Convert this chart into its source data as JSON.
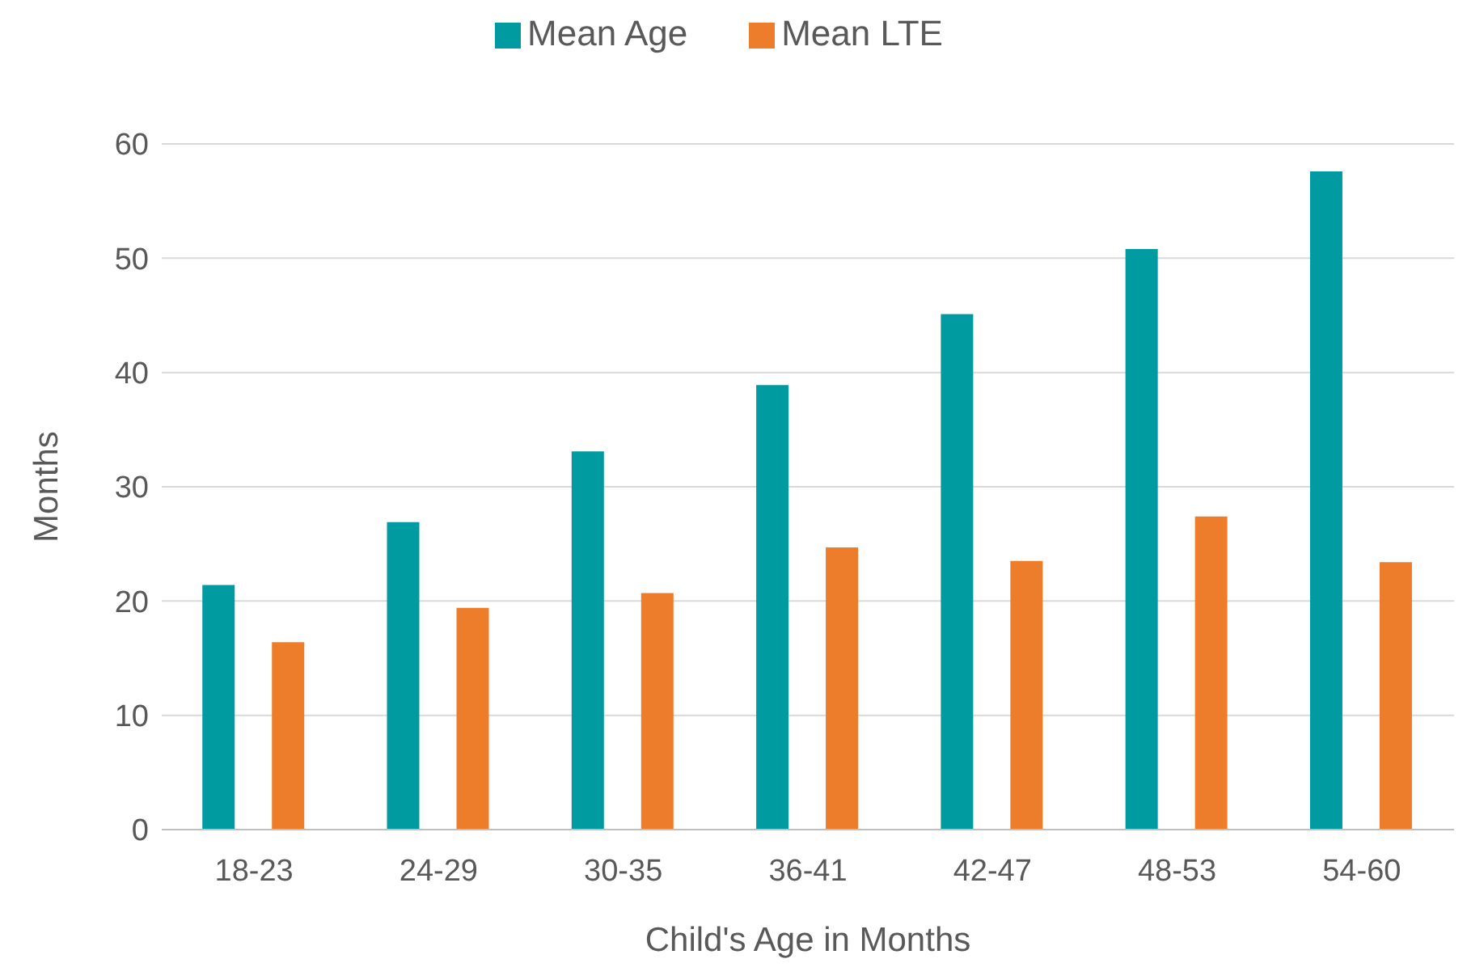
{
  "chart_data": {
    "type": "bar",
    "xlabel": "Child's Age in Months",
    "ylabel": "Months",
    "categories": [
      "18-23",
      "24-29",
      "30-35",
      "36-41",
      "42-47",
      "48-53",
      "54-60"
    ],
    "series": [
      {
        "name": "Mean Age",
        "color": "#009ba1",
        "values": [
          21.4,
          26.9,
          33.1,
          38.9,
          45.1,
          50.8,
          57.6
        ]
      },
      {
        "name": "Mean LTE",
        "color": "#ee7d2b",
        "values": [
          16.4,
          19.4,
          20.7,
          24.7,
          23.5,
          27.4,
          23.4
        ]
      }
    ],
    "ylim": [
      0,
      60
    ],
    "yticks": [
      0,
      10,
      20,
      30,
      40,
      50,
      60
    ],
    "grid": "y",
    "legend": "top"
  }
}
